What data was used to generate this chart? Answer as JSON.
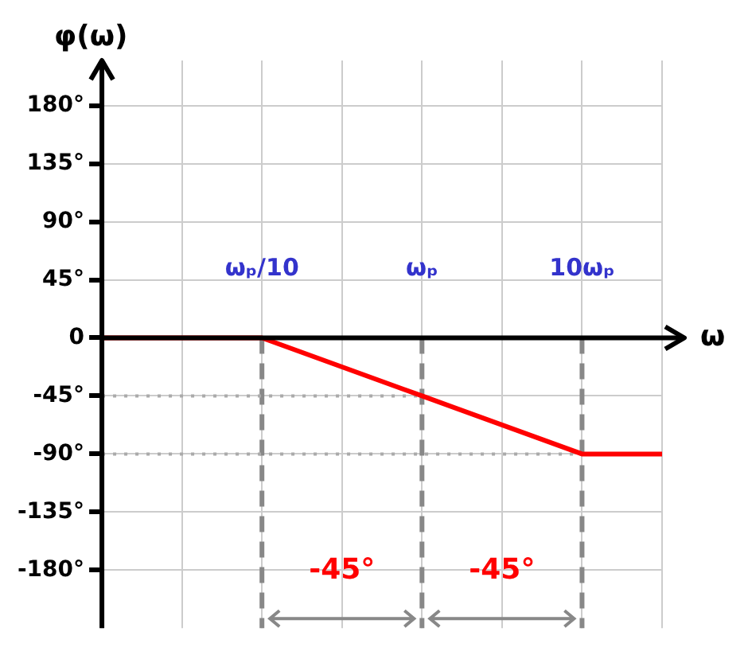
{
  "chart_data": {
    "type": "line",
    "ylabel": "φ(ω)",
    "xlabel": "ω",
    "categories": [
      null,
      null,
      "ωₚ/10",
      null,
      "ωₚ",
      null,
      "10ωₚ",
      null
    ],
    "series": [
      {
        "color": "#ff0000",
        "values": [
          0,
          null,
          0,
          null,
          -45,
          null,
          -90,
          -90
        ]
      }
    ],
    "ylim": [
      -225,
      215
    ],
    "yticks": [
      {
        "value": -180,
        "label": "-180°"
      },
      {
        "value": -135,
        "label": "-135°"
      },
      {
        "value": -90,
        "label": "-90°"
      },
      {
        "value": -45,
        "label": "-45°"
      },
      0,
      {
        "value": 45,
        "label": "45°"
      },
      {
        "value": 90,
        "label": "90°"
      },
      {
        "value": 135,
        "label": "135°"
      },
      {
        "value": 180,
        "label": "180°"
      }
    ],
    "ref_lines": [
      {
        "axis": "x",
        "value": "ωₚ/10",
        "color": "#888888",
        "line_style": "dashed"
      },
      {
        "axis": "x",
        "value": "ωₚ",
        "color": "#888888",
        "line_style": "dashed"
      },
      {
        "axis": "x",
        "value": "10ωₚ",
        "color": "#888888",
        "line_style": "dashed"
      },
      {
        "axis": "y",
        "value": -45,
        "color": "#aaaaaa",
        "line_style": "dotted"
      },
      {
        "axis": "y",
        "value": -90,
        "color": "#aaaaaa",
        "line_style": "dotted"
      }
    ],
    "annotations": [
      "-45°",
      "-45°"
    ],
    "grid": true,
    "legend": false,
    "marker": "none",
    "line_style": "solid"
  }
}
